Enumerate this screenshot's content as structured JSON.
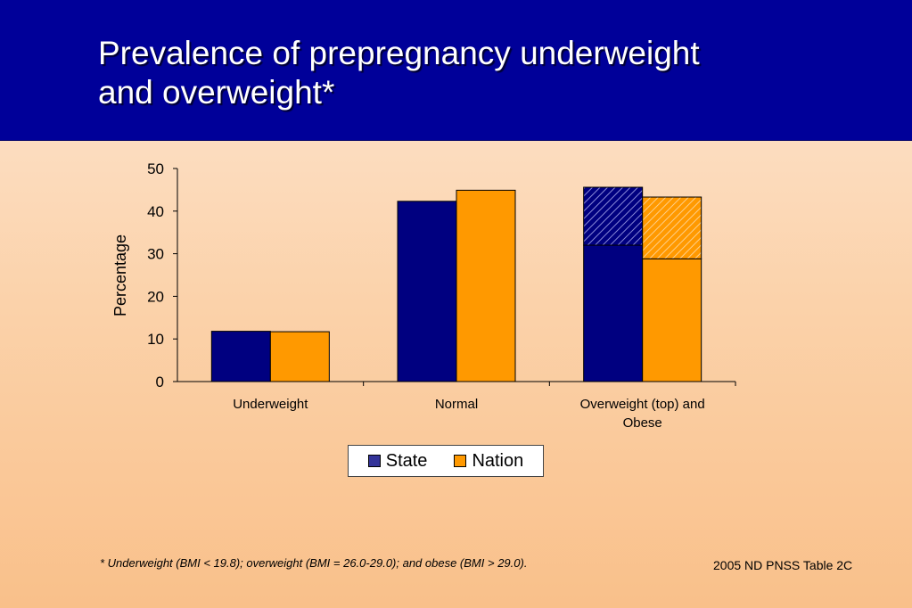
{
  "slide": {
    "title_line1": "Prevalence of prepregnancy underweight",
    "title_line2": "and overweight*",
    "footnote": "*  Underweight (BMI < 19.8); overweight (BMI = 26.0-29.0); and obese (BMI > 29.0).",
    "source": "2005 ND PNSS Table 2C"
  },
  "colors": {
    "header_bg": "#000099",
    "state": "#000080",
    "nation": "#ff9900",
    "state_swatch": "#333399",
    "nation_swatch": "#ff9900"
  },
  "chart_data": {
    "type": "bar",
    "ylabel": "Percentage",
    "ylim": [
      0,
      50
    ],
    "yticks": [
      "0",
      "10",
      "20",
      "30",
      "40",
      "50"
    ],
    "categories": [
      [
        "Underweight"
      ],
      [
        "Normal"
      ],
      [
        "Overweight (top) and",
        "Obese"
      ]
    ],
    "series": [
      {
        "name": "State",
        "values": [
          11.8,
          42.3,
          45.6
        ],
        "obese": [
          null,
          null,
          32.0
        ],
        "overweight": [
          null,
          null,
          13.6
        ]
      },
      {
        "name": "Nation",
        "values": [
          11.7,
          44.9,
          43.3
        ],
        "obese": [
          null,
          null,
          28.8
        ],
        "overweight": [
          null,
          null,
          14.5
        ]
      }
    ],
    "legend_position": "bottom",
    "grid": false
  }
}
